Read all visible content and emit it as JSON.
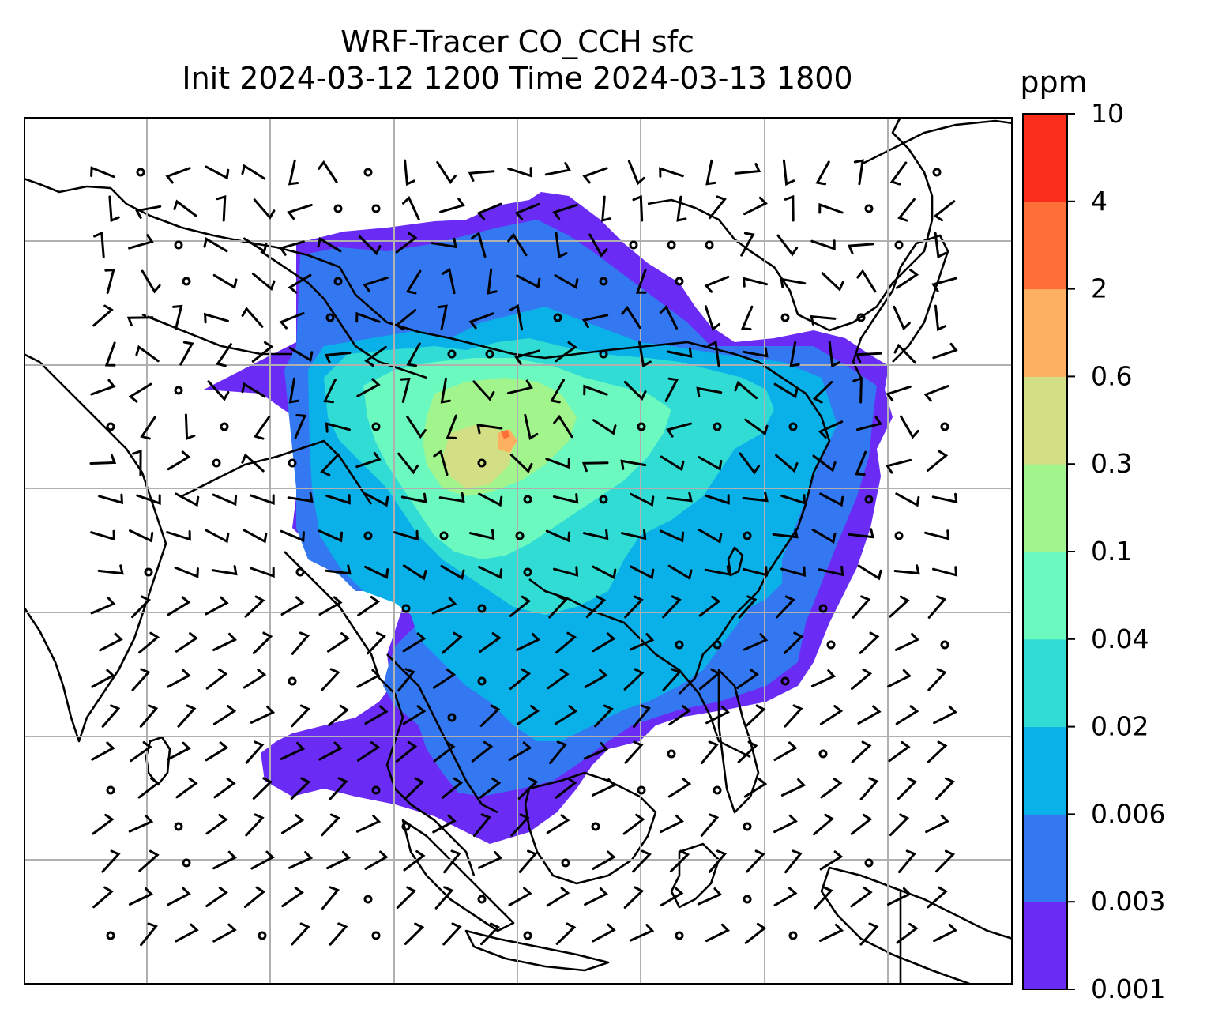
{
  "title": {
    "line1": "WRF-Tracer CO_CCH sfc",
    "line2": "Init 2024-03-12 1200 Time 2024-03-13 1800"
  },
  "colorbar": {
    "unit": "ppm",
    "levels": [
      "0.001",
      "0.003",
      "0.006",
      "0.02",
      "0.04",
      "0.1",
      "0.3",
      "0.6",
      "2",
      "4",
      "10"
    ],
    "colors": [
      "#6a2cf5",
      "#3378f0",
      "#0ab0e8",
      "#30dcd4",
      "#6cf9bf",
      "#a2f58c",
      "#d2df84",
      "#fcb060",
      "#fd6e39",
      "#f92d1a"
    ]
  },
  "map": {
    "background": "#ffffff",
    "gridline_color": "#b0b0b0",
    "coastline_color": "#000000"
  }
}
